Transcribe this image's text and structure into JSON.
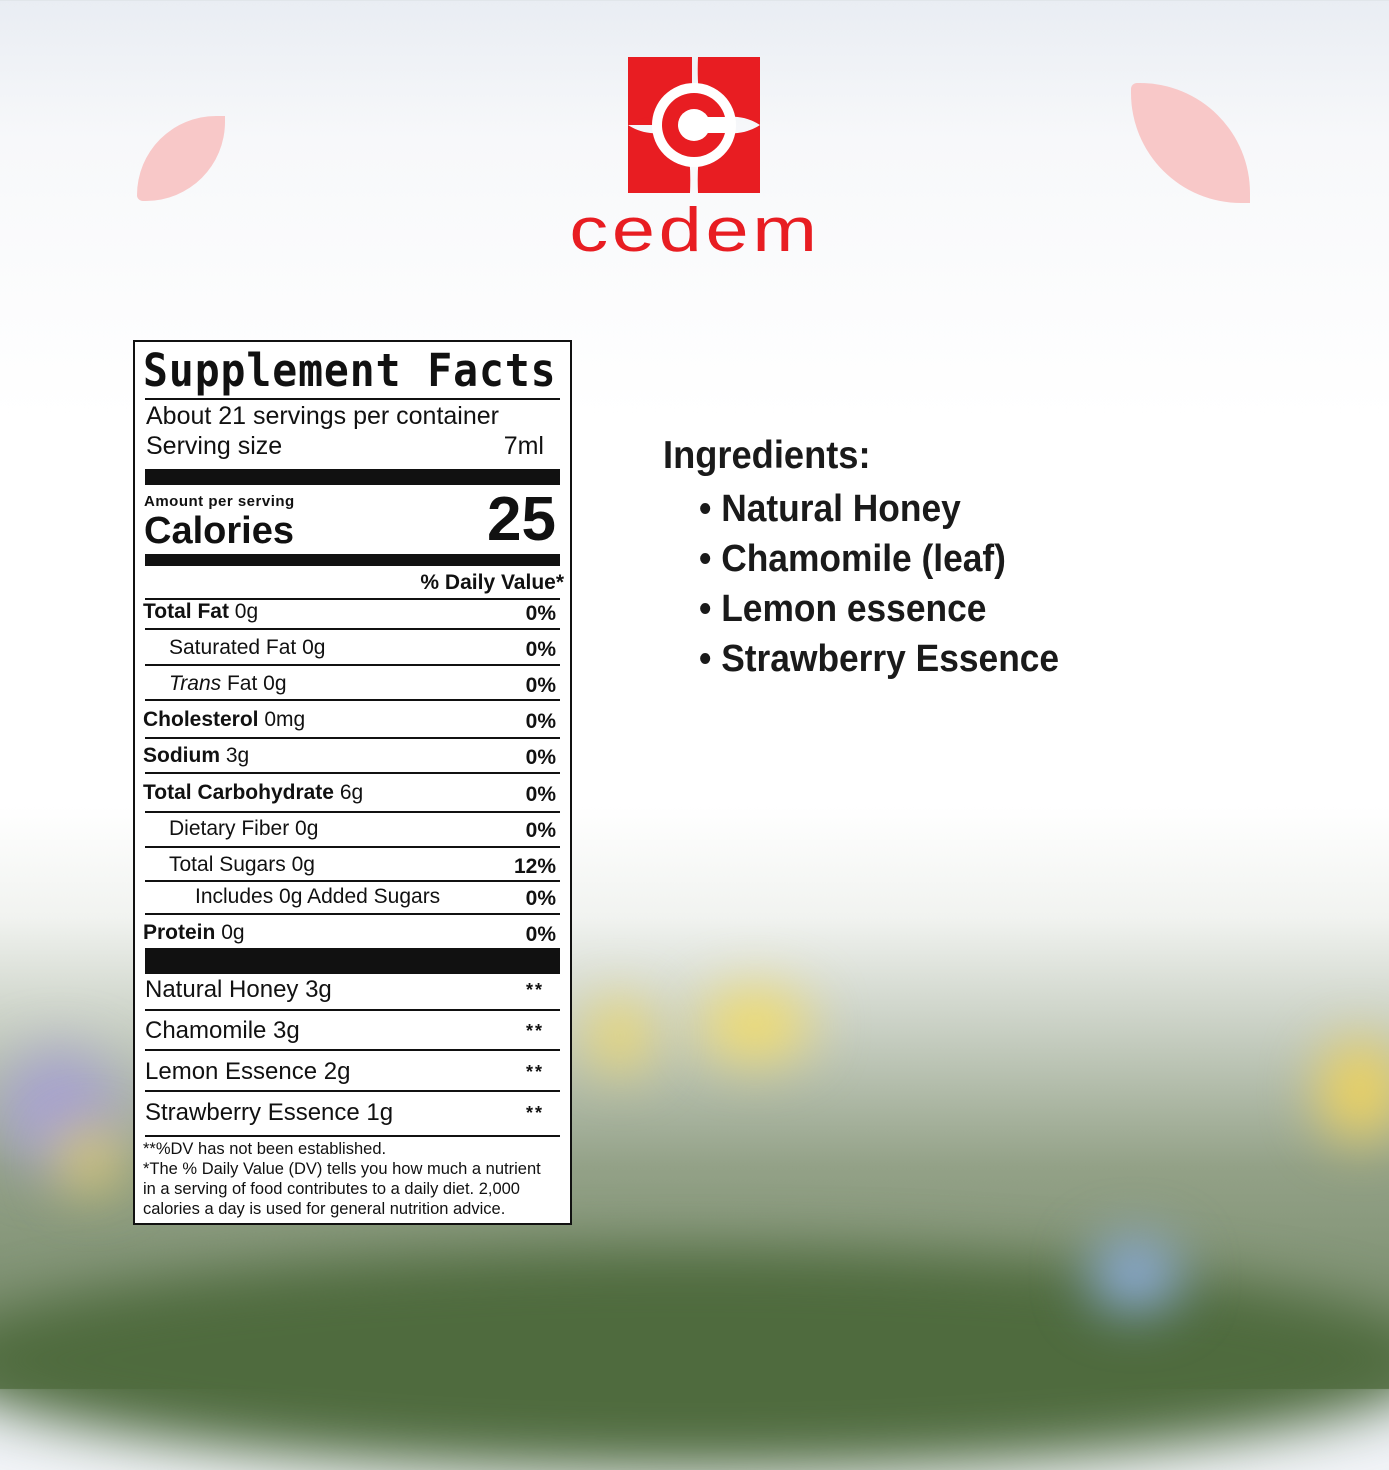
{
  "brand": {
    "name": "cedem",
    "color": "#e81d22",
    "accent_petal_color": "#f8c8c8"
  },
  "label": {
    "title": "Supplement Facts",
    "servings": "About 21 servings per container",
    "serving_size_label": "Serving size",
    "serving_size_value": "7ml",
    "amount_per_serving": "Amount per serving",
    "calories_label": "Calories",
    "calories_value": "25",
    "dv_header": "% Daily Value*",
    "nutrients": [
      {
        "name": "Total Fat",
        "amount": "0g",
        "dv": "0%",
        "bold": true,
        "indent": 0
      },
      {
        "name": "Saturated Fat",
        "amount": "0g",
        "dv": "0%",
        "bold": false,
        "indent": 1
      },
      {
        "name": "Trans",
        "name_suffix": "Fat",
        "amount": "0g",
        "dv": "0%",
        "bold": false,
        "indent": 1,
        "italic": true
      },
      {
        "name": "Cholesterol",
        "amount": "0mg",
        "dv": "0%",
        "bold": true,
        "indent": 0
      },
      {
        "name": "Sodium",
        "amount": "3g",
        "dv": "0%",
        "bold": true,
        "indent": 0
      },
      {
        "name": "Total Carbohydrate",
        "amount": "6g",
        "dv": "0%",
        "bold": true,
        "indent": 0
      },
      {
        "name": "Dietary Fiber",
        "amount": "0g",
        "dv": "0%",
        "bold": false,
        "indent": 1
      },
      {
        "name": "Total Sugars",
        "amount": "0g",
        "dv": "12%",
        "bold": false,
        "indent": 1
      },
      {
        "name": "Includes 0g Added Sugars",
        "amount": "",
        "dv": "0%",
        "bold": false,
        "indent": 2
      },
      {
        "name": "Protein",
        "amount": "0g",
        "dv": "0%",
        "bold": true,
        "indent": 0
      }
    ],
    "ingredients": [
      {
        "name": "Natural Honey 3g",
        "dv": "**"
      },
      {
        "name": "Chamomile 3g",
        "dv": "**"
      },
      {
        "name": "Lemon Essence 2g",
        "dv": "**"
      },
      {
        "name": "Strawberry Essence 1g",
        "dv": "**"
      }
    ],
    "footnotes": [
      "**%DV has not been established.",
      "*The % Daily Value (DV) tells you how much a nutrient",
      "in a serving of food contributes to a daily diet. 2,000",
      "calories a day is used for general nutrition advice."
    ]
  },
  "ingredients_panel": {
    "heading": "Ingredients:",
    "items": [
      "Natural Honey",
      "Chamomile (leaf)",
      "Lemon essence",
      "Strawberry Essence"
    ]
  }
}
